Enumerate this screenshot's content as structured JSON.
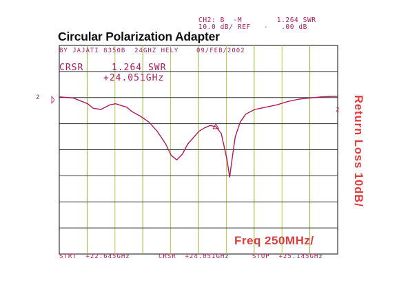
{
  "header": {
    "line1": "CH2: B  -M        1.264 SWR",
    "line2": "10.0 dB/ REF   -   .00 dB"
  },
  "chart_data": {
    "type": "line",
    "title": "Circular Polarization Adapter",
    "ylabel": "Return Loss 10dB/",
    "xlabel": "Freq 250MHz/",
    "info_line": "BY JAJATI 8350B  24GHZ HELY    09/FEB/2002",
    "cursor": {
      "label": "CRSR",
      "swr": "1.264 SWR",
      "freq": "+24.051GHz",
      "marker_x": 24.051,
      "marker_y": -1.2
    },
    "ref_marker": "2",
    "footer": {
      "start": "STRT  +22.645GHz",
      "crsr": "CRSR  +24.051GHz",
      "stop": "STOP  +25.145GHz"
    },
    "xlim": [
      22.645,
      25.145
    ],
    "ylim": [
      -6.0,
      0.0
    ],
    "grid": true,
    "grid_divisions": {
      "x": 10,
      "y": 8
    },
    "series": [
      {
        "color": "#b0185a",
        "x": [
          22.645,
          22.77,
          22.9,
          22.95,
          23.02,
          23.1,
          23.15,
          23.25,
          23.3,
          23.375,
          23.45,
          23.525,
          23.6,
          23.65,
          23.7,
          23.75,
          23.8,
          23.9,
          23.95,
          24.0,
          24.051,
          24.1,
          24.15,
          24.175,
          24.2,
          24.225,
          24.27,
          24.32,
          24.4,
          24.5,
          24.6,
          24.7,
          24.8,
          24.9,
          25.0,
          25.1,
          25.145
        ],
        "y": [
          0.1,
          0.05,
          -0.2,
          -0.4,
          -0.45,
          -0.25,
          -0.2,
          -0.35,
          -0.55,
          -0.75,
          -1.0,
          -1.4,
          -1.95,
          -2.45,
          -2.65,
          -2.4,
          -1.95,
          -1.4,
          -1.25,
          -1.15,
          -1.2,
          -1.5,
          -2.6,
          -3.4,
          -2.5,
          -1.65,
          -1.0,
          -0.65,
          -0.45,
          -0.35,
          -0.25,
          -0.1,
          0.0,
          0.05,
          0.1,
          0.12,
          0.12
        ]
      }
    ]
  }
}
